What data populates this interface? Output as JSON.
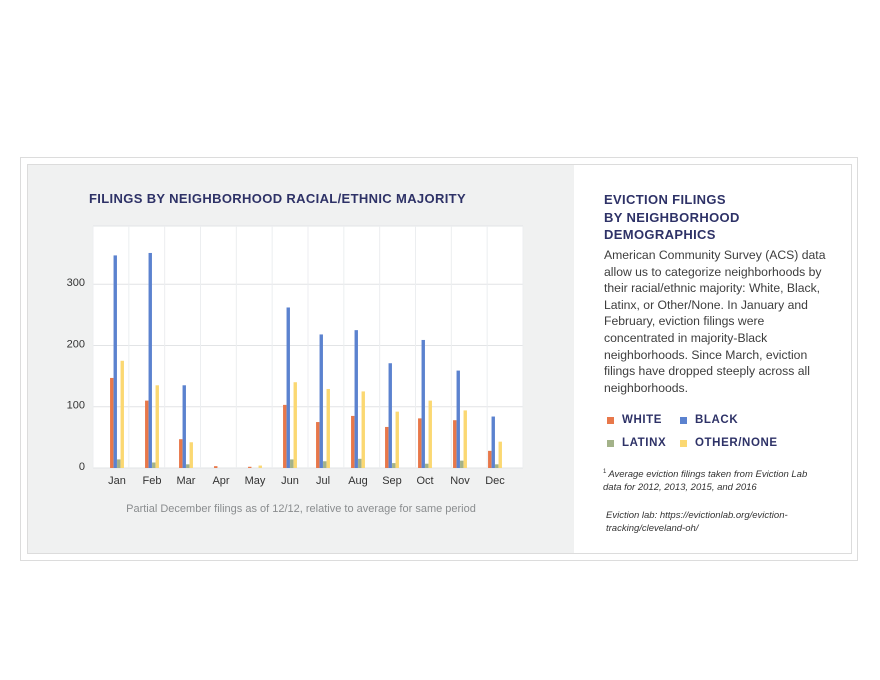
{
  "chart_data": {
    "type": "bar",
    "title": "FILINGS BY NEIGHBORHOOD RACIAL/ETHNIC MAJORITY",
    "categories": [
      "Jan",
      "Feb",
      "Mar",
      "Apr",
      "May",
      "Jun",
      "Jul",
      "Aug",
      "Sep",
      "Oct",
      "Nov",
      "Dec"
    ],
    "series": [
      {
        "name": "WHITE",
        "color": "#e8784a",
        "values": [
          147,
          110,
          47,
          3,
          2,
          103,
          75,
          85,
          67,
          81,
          78,
          28
        ]
      },
      {
        "name": "BLACK",
        "color": "#5b82cf",
        "values": [
          347,
          351,
          135,
          0,
          0,
          262,
          218,
          225,
          171,
          209,
          159,
          84
        ]
      },
      {
        "name": "LATINX",
        "color": "#a3b289",
        "values": [
          14,
          9,
          6,
          0,
          0,
          14,
          11,
          15,
          8,
          7,
          12,
          6
        ]
      },
      {
        "name": "OTHER/NONE",
        "color": "#fbd872",
        "values": [
          175,
          135,
          42,
          0,
          4,
          140,
          129,
          125,
          92,
          110,
          94,
          43
        ]
      }
    ],
    "yticks": [
      0,
      100,
      200,
      300
    ],
    "ylim": [
      0,
      395
    ],
    "xlabel": "",
    "ylabel": "",
    "grid": true,
    "note": "Partial December filings as of 12/12, relative to average for same period"
  },
  "sidebar": {
    "title_lines": [
      "EVICTION FILINGS",
      "BY NEIGHBORHOOD",
      "DEMOGRAPHICS"
    ],
    "body": "American Community Survey (ACS) data allow us to categorize neighborhoods by their racial/ethnic majority: White, Black, Latinx, or Other/None. In January and February, eviction filings were concentrated in majority-Black neighborhoods. Since March, eviction filings have dropped steeply across all neighborhoods.",
    "legend": [
      {
        "label": "WHITE",
        "color": "#e8784a"
      },
      {
        "label": "BLACK",
        "color": "#5b82cf"
      },
      {
        "label": "LATINX",
        "color": "#a3b289"
      },
      {
        "label": "OTHER/NONE",
        "color": "#fbd872"
      }
    ],
    "footnote_marker": "1",
    "footnote": "Average eviction filings taken from Eviction Lab data for 2012, 2013, 2015, and 2016",
    "source": "Eviction lab: https://evictionlab.org/eviction-tracking/cleveland-oh/"
  }
}
